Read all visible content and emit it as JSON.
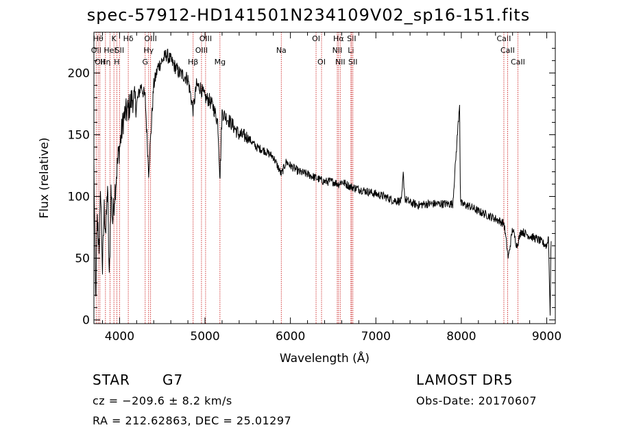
{
  "title": "spec-57912-HD141501N234109V02_sp16-151.fits",
  "footer": {
    "class_label": "STAR",
    "subclass": "G7",
    "survey": "LAMOST DR5",
    "cz": "cz = −209.6 ± 8.2 km/s",
    "obs_date": "Obs-Date: 20170607",
    "radec": "RA = 212.62863, DEC =  25.01297"
  },
  "chart_data": {
    "type": "line",
    "title": "spec-57912-HD141501N234109V02_sp16-151.fits",
    "xlabel": "Wavelength (Å)",
    "ylabel": "Flux (relative)",
    "xlim": [
      3700,
      9100
    ],
    "ylim": [
      -3,
      233
    ],
    "x_ticks": [
      4000,
      5000,
      6000,
      7000,
      8000,
      9000
    ],
    "y_ticks": [
      0,
      50,
      100,
      150,
      200
    ],
    "series": [
      {
        "x": [
          3700,
          3720,
          3740,
          3760,
          3780,
          3800,
          3820,
          3840,
          3860,
          3880,
          3900,
          3920,
          3940,
          3960,
          3980,
          4000,
          4050,
          4100,
          4150,
          4200,
          4250,
          4300,
          4340,
          4400,
          4450,
          4500,
          4550,
          4600,
          4650,
          4700,
          4750,
          4800,
          4861,
          4900,
          4950,
          5000,
          5050,
          5100,
          5150,
          5175,
          5200,
          5300,
          5400,
          5500,
          5600,
          5700,
          5800,
          5893,
          5950,
          6000,
          6100,
          6200,
          6300,
          6400,
          6500,
          6563,
          6600,
          6700,
          6800,
          6900,
          7000,
          7100,
          7200,
          7300,
          7320,
          7340,
          7400,
          7500,
          7600,
          7700,
          7800,
          7900,
          7980,
          7990,
          8000,
          8100,
          8200,
          8300,
          8400,
          8500,
          8550,
          8600,
          8650,
          8700,
          8800,
          8900,
          9000,
          9020,
          9040,
          9050
        ],
        "y": [
          125,
          15,
          80,
          60,
          105,
          40,
          90,
          70,
          110,
          30,
          105,
          80,
          100,
          115,
          130,
          140,
          165,
          170,
          180,
          175,
          190,
          180,
          120,
          190,
          205,
          210,
          215,
          210,
          205,
          200,
          198,
          195,
          170,
          190,
          188,
          180,
          178,
          172,
          160,
          115,
          168,
          160,
          150,
          148,
          140,
          137,
          132,
          118,
          128,
          125,
          120,
          118,
          115,
          112,
          112,
          110,
          112,
          108,
          106,
          104,
          102,
          100,
          97,
          96,
          118,
          98,
          95,
          93,
          94,
          94,
          94,
          94,
          176,
          95,
          94,
          92,
          88,
          85,
          82,
          78,
          50,
          74,
          60,
          72,
          68,
          65,
          60,
          68,
          5,
          66
        ]
      }
    ],
    "line_markers": [
      {
        "wl": 3727,
        "label": "OII",
        "row": 1
      },
      {
        "wl": 3750,
        "label": "Hθ",
        "row": 0
      },
      {
        "wl": 3770,
        "label": "OII",
        "row": 2
      },
      {
        "wl": 3835,
        "label": "Hη",
        "row": 2
      },
      {
        "wl": 3889,
        "label": "HeI",
        "row": 1
      },
      {
        "wl": 3934,
        "label": "K",
        "row": 0
      },
      {
        "wl": 3968,
        "label": "H",
        "row": 2
      },
      {
        "wl": 4000,
        "label": "SII",
        "row": 1
      },
      {
        "wl": 4102,
        "label": "Hδ",
        "row": 0
      },
      {
        "wl": 4300,
        "label": "G",
        "row": 2
      },
      {
        "wl": 4340,
        "label": "Hγ",
        "row": 1
      },
      {
        "wl": 4363,
        "label": "OIII",
        "row": 0
      },
      {
        "wl": 4861,
        "label": "Hβ",
        "row": 2
      },
      {
        "wl": 4959,
        "label": "OIII",
        "row": 1
      },
      {
        "wl": 5007,
        "label": "OIII",
        "row": 0
      },
      {
        "wl": 5175,
        "label": "Mg",
        "row": 2
      },
      {
        "wl": 5893,
        "label": "Na",
        "row": 1
      },
      {
        "wl": 6300,
        "label": "OI",
        "row": 0
      },
      {
        "wl": 6364,
        "label": "OI",
        "row": 2
      },
      {
        "wl": 6548,
        "label": "NII",
        "row": 1
      },
      {
        "wl": 6563,
        "label": "Hα",
        "row": 0
      },
      {
        "wl": 6583,
        "label": "NII",
        "row": 2
      },
      {
        "wl": 6708,
        "label": "Li",
        "row": 1
      },
      {
        "wl": 6716,
        "label": "SII",
        "row": 0
      },
      {
        "wl": 6731,
        "label": "SII",
        "row": 2
      },
      {
        "wl": 8498,
        "label": "CaII",
        "row": 0
      },
      {
        "wl": 8542,
        "label": "CaII",
        "row": 1
      },
      {
        "wl": 8662,
        "label": "CaII",
        "row": 2
      }
    ]
  }
}
